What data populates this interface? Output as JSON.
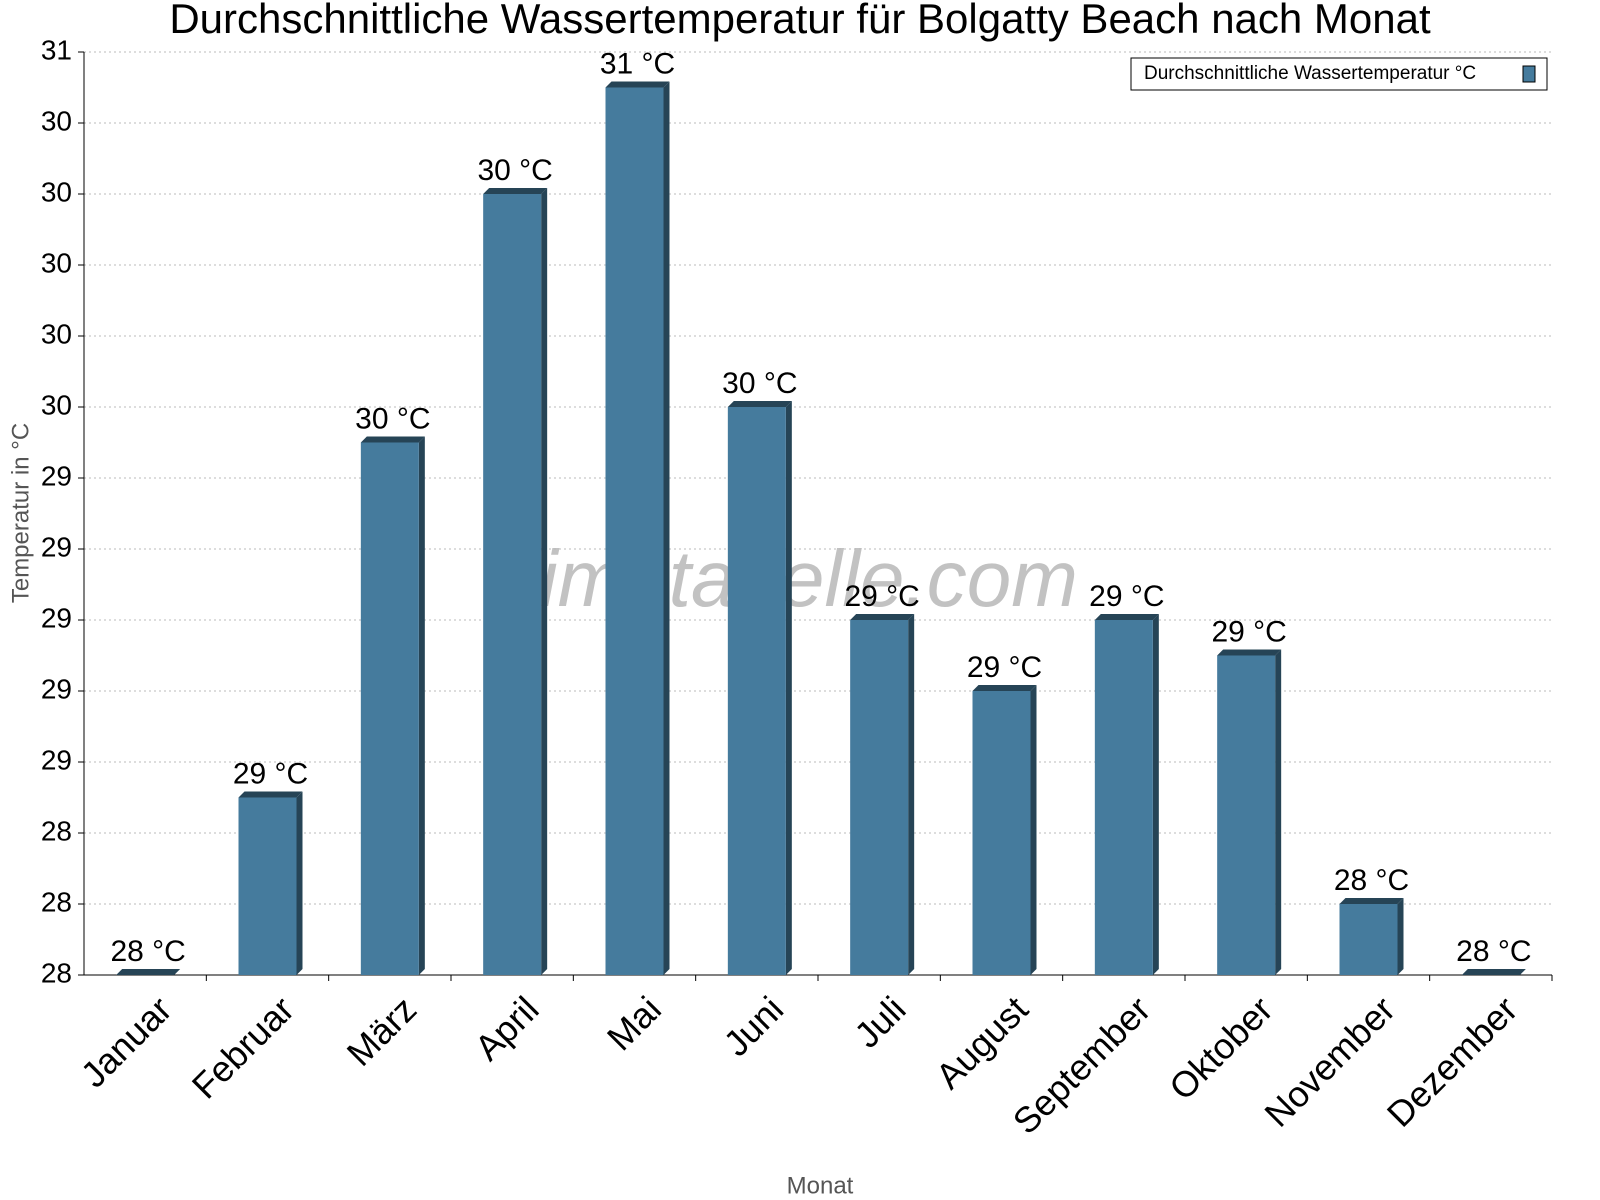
{
  "chart_data": {
    "type": "bar",
    "title": "Durchschnittliche Wassertemperatur für Bolgatty Beach nach Monat",
    "x_label": "Monat",
    "y_label": "Temperatur in °C",
    "watermark": "klimatabelle.com",
    "categories": [
      "Januar",
      "Februar",
      "März",
      "April",
      "Mai",
      "Juni",
      "Juli",
      "August",
      "September",
      "Oktober",
      "November",
      "Dezember"
    ],
    "series": [
      {
        "name": "Durchschnittliche Wassertemperatur °C",
        "color": "#457b9d",
        "values": [
          28,
          28.5,
          29.5,
          30.2,
          30.5,
          29.6,
          29.0,
          28.8,
          29.0,
          28.9,
          28.2,
          28
        ],
        "value_labels": [
          "28 °C",
          "29 °C",
          "30 °C",
          "30 °C",
          "31 °C",
          "30 °C",
          "29 °C",
          "29 °C",
          "29 °C",
          "29 °C",
          "28 °C",
          "28 °C"
        ]
      }
    ],
    "ylim": [
      28,
      30.6
    ],
    "yticks": [
      28,
      {
        "value": 28.2,
        "label": "28"
      },
      {
        "value": 28.4,
        "label": "28"
      },
      {
        "value": 28.6,
        "label": "29"
      },
      {
        "value": 28.8,
        "label": "29"
      },
      29,
      {
        "value": 29.2,
        "label": "29"
      },
      {
        "value": 29.4,
        "label": "29"
      },
      {
        "value": 29.6,
        "label": "30"
      },
      {
        "value": 29.8,
        "label": "30"
      },
      30,
      {
        "value": 30.2,
        "label": "30"
      },
      {
        "value": 30.4,
        "label": "30"
      },
      {
        "value": 30.6,
        "label": "31"
      }
    ],
    "grid": true,
    "legend": "top-right"
  }
}
